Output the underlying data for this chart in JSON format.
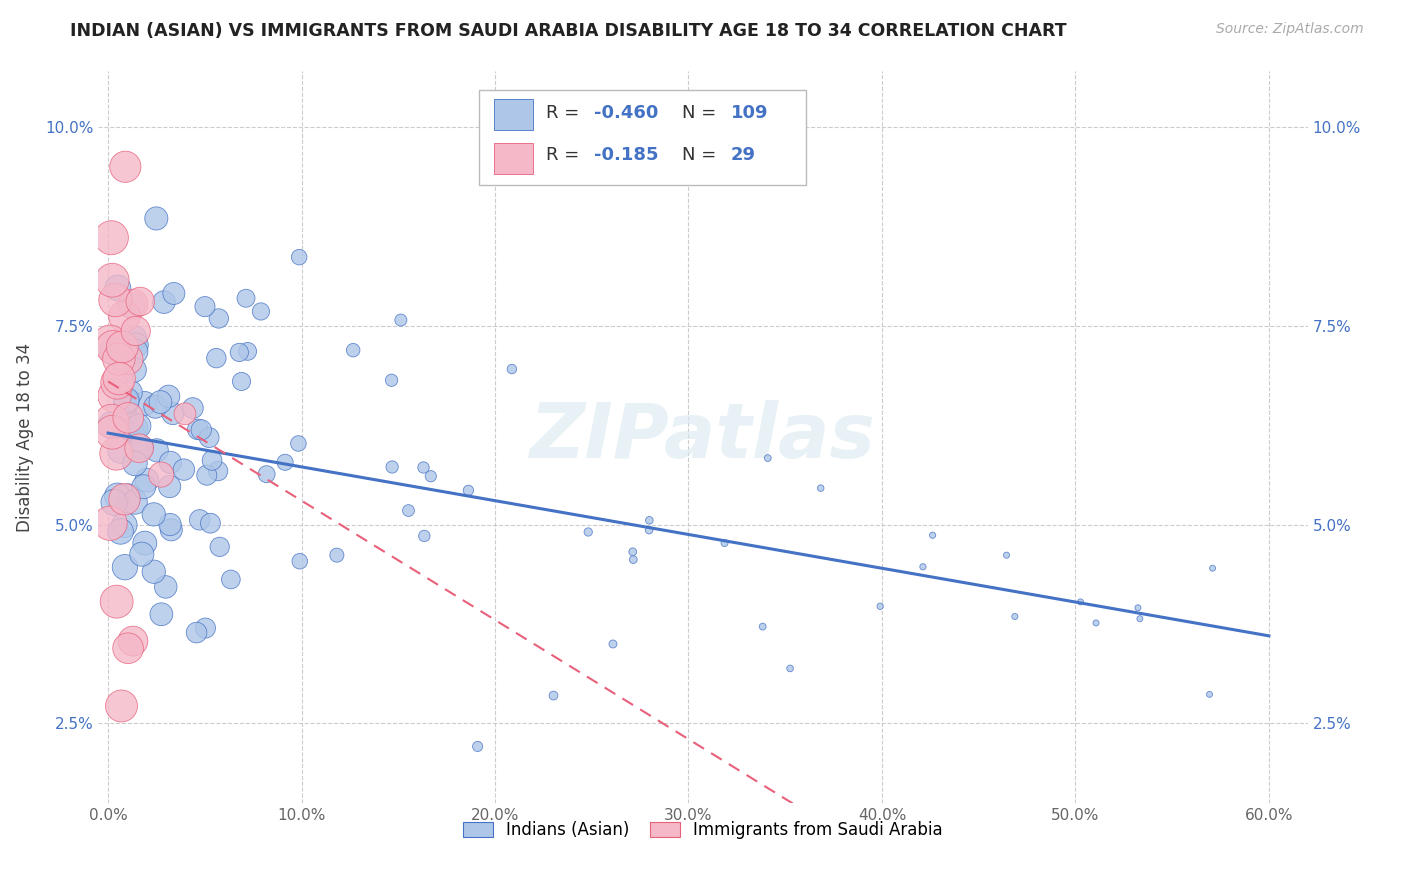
{
  "title": "INDIAN (ASIAN) VS IMMIGRANTS FROM SAUDI ARABIA DISABILITY AGE 18 TO 34 CORRELATION CHART",
  "source": "Source: ZipAtlas.com",
  "ylabel": "Disability Age 18 to 34",
  "xlim": [
    -0.005,
    0.62
  ],
  "ylim": [
    0.015,
    0.107
  ],
  "yticks": [
    0.025,
    0.05,
    0.075,
    0.1
  ],
  "ytick_labels": [
    "2.5%",
    "5.0%",
    "7.5%",
    "10.0%"
  ],
  "xticks": [
    0.0,
    0.1,
    0.2,
    0.3,
    0.4,
    0.5,
    0.6
  ],
  "xtick_labels": [
    "0.0%",
    "10.0%",
    "20.0%",
    "30.0%",
    "40.0%",
    "50.0%",
    "60.0%"
  ],
  "legend_bottom": [
    "Indians (Asian)",
    "Immigrants from Saudi Arabia"
  ],
  "legend_box": {
    "R1": "-0.460",
    "N1": "109",
    "R2": "-0.185",
    "N2": "29"
  },
  "color_blue": "#aec6e8",
  "color_pink": "#f4b8c8",
  "line_blue": "#4472c4",
  "line_pink": "#e8607a",
  "watermark": "ZIPatlas",
  "blue_trend": [
    0.0,
    0.6,
    0.0615,
    0.036
  ],
  "pink_trend": [
    0.0,
    0.52,
    0.068,
    -0.01
  ]
}
